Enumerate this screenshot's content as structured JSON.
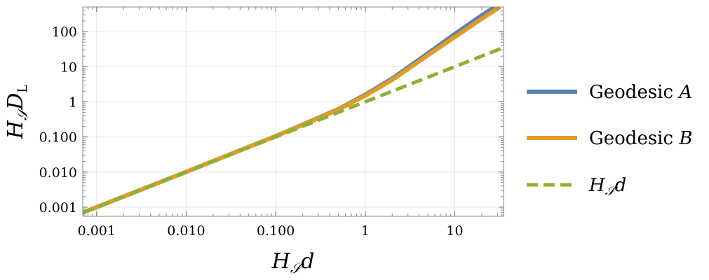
{
  "chart_data": {
    "type": "line",
    "x_scale": "log",
    "y_scale": "log",
    "xlim": [
      0.0007,
      35
    ],
    "ylim": [
      0.00055,
      500
    ],
    "grid": true,
    "legend_position": "right",
    "xlabel": {
      "main": "H",
      "sub": "𝒮",
      "rest": "d"
    },
    "ylabel": {
      "main": "H",
      "sub": "𝒮",
      "rest": "D",
      "rest_sub": "L"
    },
    "x_ticks": [
      {
        "value": 0.001,
        "label": "0.001"
      },
      {
        "value": 0.01,
        "label": "0.010"
      },
      {
        "value": 0.1,
        "label": "0.100"
      },
      {
        "value": 1,
        "label": "1"
      },
      {
        "value": 10,
        "label": "10"
      }
    ],
    "y_ticks": [
      {
        "value": 0.001,
        "label": "0.001"
      },
      {
        "value": 0.01,
        "label": "0.010"
      },
      {
        "value": 0.1,
        "label": "0.100"
      },
      {
        "value": 1,
        "label": "1"
      },
      {
        "value": 10,
        "label": "10"
      },
      {
        "value": 100,
        "label": "100"
      }
    ],
    "series": [
      {
        "name": "Geodesic A",
        "name_main": "Geodesic ",
        "name_var": "A",
        "color": "#5E81B5",
        "dash": "solid",
        "x": [
          0.0007,
          0.001,
          0.01,
          0.1,
          0.3,
          0.5,
          1,
          2,
          3,
          5,
          10,
          20,
          28
        ],
        "y": [
          0.0007,
          0.001,
          0.0101,
          0.106,
          0.35,
          0.62,
          1.6,
          4.6,
          9.5,
          24,
          85,
          290,
          500
        ]
      },
      {
        "name": "Geodesic B",
        "name_main": "Geodesic ",
        "name_var": "B",
        "color": "#E19C24",
        "dash": "solid",
        "x": [
          0.0007,
          0.001,
          0.01,
          0.1,
          0.3,
          0.5,
          1,
          2,
          3,
          5,
          10,
          20,
          32
        ],
        "y": [
          0.0007,
          0.001,
          0.0101,
          0.105,
          0.34,
          0.6,
          1.5,
          4.2,
          8.5,
          21,
          70,
          230,
          500
        ]
      },
      {
        "name": "H𝒮d",
        "name_main": "H",
        "name_sub": "𝒮",
        "name_rest": "d",
        "color": "#8FB032",
        "dash": "dashed",
        "x": [
          0.0007,
          35
        ],
        "y": [
          0.0007,
          35
        ]
      }
    ]
  }
}
